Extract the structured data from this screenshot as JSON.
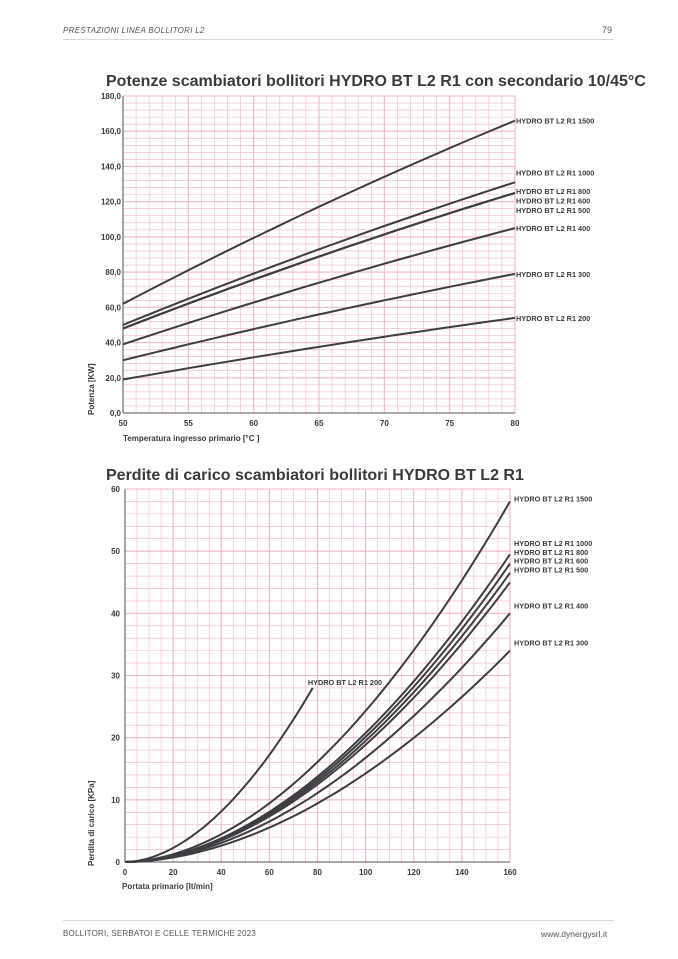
{
  "header": {
    "section": "PRESTAZIONI LINEA BOLLITORI L2",
    "page_number": "79"
  },
  "footer": {
    "catalog": "BOLLITORI, SERBATOI E CELLE TERMICHE 2023",
    "website": "www.dynergysrl.it"
  },
  "colors": {
    "grid": "#f2b8c4",
    "curve": "#3d3d42",
    "text": "#3a3a3a"
  },
  "chart_data": [
    {
      "type": "line",
      "title": "Potenze scambiatori bollitori HYDRO BT L2 R1  con secondario 10/45°C",
      "xlabel": "Temperatura ingresso primario [°C ]",
      "ylabel": "Potenza [KW]",
      "xlim": [
        50,
        80
      ],
      "ylim": [
        0,
        180
      ],
      "x_ticks": [
        "50",
        "55",
        "60",
        "65",
        "70",
        "75",
        "80"
      ],
      "y_ticks": [
        "0,0",
        "20,0",
        "40,0",
        "60,0",
        "80,0",
        "100,0",
        "120,0",
        "140,0",
        "160,0",
        "180,0"
      ],
      "grid": true,
      "x": [
        50,
        80
      ],
      "series": [
        {
          "name": "HYDRO BT L2 R1 1500",
          "values": [
            62,
            166
          ]
        },
        {
          "name": "HYDRO BT L2 R1 1000",
          "values": [
            50,
            131
          ]
        },
        {
          "name": "HYDRO BT L2 R1 800",
          "values": [
            48,
            125
          ]
        },
        {
          "name": "HYDRO BT L2 R1 600",
          "values": [
            48,
            125
          ]
        },
        {
          "name": "HYDRO BT L2 R1 500",
          "values": [
            48,
            125
          ]
        },
        {
          "name": "HYDRO BT L2 R1 400",
          "values": [
            39,
            105
          ]
        },
        {
          "name": "HYDRO BT L2 R1 300",
          "values": [
            30,
            79
          ]
        },
        {
          "name": "HYDRO BT L2 R1 200",
          "values": [
            19,
            54
          ]
        }
      ]
    },
    {
      "type": "line",
      "title": "Perdite di carico scambiatori bollitori HYDRO BT L2 R1",
      "xlabel": "Portata primario [lt/min]",
      "ylabel": "Perdita di carico [KPa]",
      "xlim": [
        0,
        160
      ],
      "ylim": [
        0,
        60
      ],
      "x_ticks": [
        "0",
        "20",
        "40",
        "60",
        "80",
        "100",
        "120",
        "140",
        "160"
      ],
      "y_ticks": [
        "0",
        "10",
        "20",
        "30",
        "40",
        "50",
        "60"
      ],
      "grid": true,
      "series": [
        {
          "name": "HYDRO BT L2 R1 1500",
          "x": [
            0,
            160
          ],
          "values": [
            0,
            58
          ]
        },
        {
          "name": "HYDRO BT L2 R1 1000",
          "x": [
            0,
            160
          ],
          "values": [
            0,
            49.5
          ]
        },
        {
          "name": "HYDRO BT L2 R1 800",
          "x": [
            0,
            160
          ],
          "values": [
            0,
            48
          ]
        },
        {
          "name": "HYDRO BT L2 R1 600",
          "x": [
            0,
            160
          ],
          "values": [
            0,
            46.5
          ]
        },
        {
          "name": "HYDRO BT L2 R1 500",
          "x": [
            0,
            160
          ],
          "values": [
            0,
            45
          ]
        },
        {
          "name": "HYDRO BT L2 R1 400",
          "x": [
            0,
            160
          ],
          "values": [
            0,
            40
          ]
        },
        {
          "name": "HYDRO BT L2 R1 300",
          "x": [
            0,
            160
          ],
          "values": [
            0,
            34
          ]
        },
        {
          "name": "HYDRO BT L2 R1 200",
          "x": [
            0,
            78
          ],
          "values": [
            0,
            28
          ]
        }
      ]
    }
  ]
}
